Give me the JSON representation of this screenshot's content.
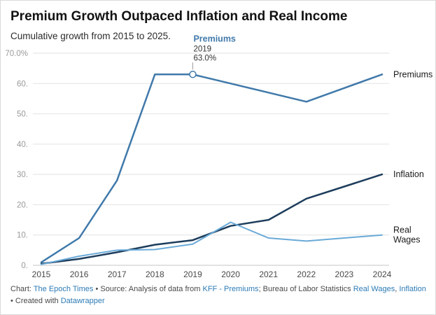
{
  "chart_data": {
    "type": "line",
    "title": "Premium Growth Outpaced Inflation and Real Income",
    "subtitle": "Cumulative growth from 2015 to 2025.",
    "x": [
      2015,
      2016,
      2017,
      2018,
      2019,
      2020,
      2021,
      2022,
      2023,
      2024
    ],
    "xlabel": "",
    "ylabel": "",
    "ylim": [
      0,
      70
    ],
    "grid": true,
    "legend_position": "right-end-labels",
    "yticks": [
      {
        "v": 70,
        "label": "70.0%"
      },
      {
        "v": 60,
        "label": "60."
      },
      {
        "v": 50,
        "label": "50."
      },
      {
        "v": 40,
        "label": "40."
      },
      {
        "v": 30,
        "label": "30."
      },
      {
        "v": 20,
        "label": "20."
      },
      {
        "v": 10,
        "label": "10."
      },
      {
        "v": 0,
        "label": "0."
      }
    ],
    "series": [
      {
        "name": "Premiums",
        "color": "#4079aa",
        "width": 2.5,
        "label_lines": [
          "Premiums"
        ],
        "values": [
          1,
          9,
          28,
          63,
          63,
          60,
          57,
          54,
          58.5,
          63
        ]
      },
      {
        "name": "Inflation",
        "color": "#1d3d5c",
        "width": 2.5,
        "label_lines": [
          "Inflation"
        ],
        "values": [
          0.5,
          2.1,
          4.3,
          6.8,
          8.3,
          13,
          15,
          22,
          26,
          30
        ]
      },
      {
        "name": "Real Wages",
        "color": "#6aaad8",
        "width": 2,
        "label_lines": [
          "Real",
          "Wages"
        ],
        "values": [
          0.3,
          3,
          5,
          5.2,
          7,
          14.2,
          9,
          8,
          9,
          10
        ]
      }
    ],
    "annotation": {
      "series": "Premiums",
      "x": 2019,
      "v": 63,
      "title": "Premiums",
      "lines": [
        "2019",
        "63.0%"
      ]
    }
  },
  "footer": {
    "link_color": "#2d7bb5",
    "segments": [
      {
        "text": "Chart: ",
        "link": false
      },
      {
        "text": "The Epoch Times",
        "link": true
      },
      {
        "text": "  • Source: Analysis of data from ",
        "link": false
      },
      {
        "text": "KFF - Premiums",
        "link": true
      },
      {
        "text": "; Bureau of Labor Statistics ",
        "link": false
      },
      {
        "text": "Real Wages",
        "link": true
      },
      {
        "text": ", ",
        "link": false
      },
      {
        "text": "Inflation",
        "link": true
      },
      {
        "text": " • Created with ",
        "link": false
      },
      {
        "text": "Datawrapper",
        "link": true
      }
    ]
  }
}
